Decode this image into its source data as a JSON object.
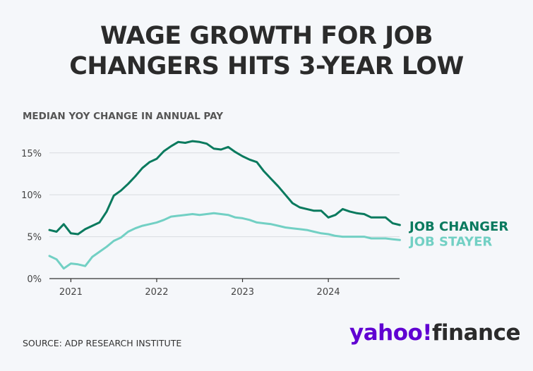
{
  "title_line1": "WAGE GROWTH FOR JOB",
  "title_line2": "CHANGERS HITS 3-YEAR LOW",
  "subtitle": "MEDIAN YOY CHANGE IN ANNUAL PAY",
  "source": "SOURCE: ADP RESEARCH INSTITUTE",
  "logo": {
    "brand": "yahoo!",
    "product": "finance"
  },
  "colors": {
    "job_changer": "#0a7a5e",
    "job_stayer": "#72d0c4",
    "grid": "#d8dce0",
    "axis": "#333333"
  },
  "chart_data": {
    "type": "line",
    "title": "WAGE GROWTH FOR JOB CHANGERS HITS 3-YEAR LOW",
    "ylabel": "MEDIAN YOY CHANGE IN ANNUAL PAY",
    "xlim": [
      2020.75,
      2024.83
    ],
    "ylim": [
      0,
      17
    ],
    "y_ticks": [
      0,
      5,
      10,
      15
    ],
    "y_tick_labels": [
      "0%",
      "5%",
      "10%",
      "15%"
    ],
    "x_ticks": [
      2021,
      2022,
      2023,
      2024
    ],
    "x_tick_labels": [
      "2021",
      "2022",
      "2023",
      "2024"
    ],
    "grid": true,
    "series": [
      {
        "name": "JOB CHANGER",
        "x": [
          2020.75,
          2020.833,
          2020.917,
          2021.0,
          2021.083,
          2021.167,
          2021.25,
          2021.333,
          2021.417,
          2021.5,
          2021.583,
          2021.667,
          2021.75,
          2021.833,
          2021.917,
          2022.0,
          2022.083,
          2022.167,
          2022.25,
          2022.333,
          2022.417,
          2022.5,
          2022.583,
          2022.667,
          2022.75,
          2022.833,
          2022.917,
          2023.0,
          2023.083,
          2023.167,
          2023.25,
          2023.333,
          2023.417,
          2023.5,
          2023.583,
          2023.667,
          2023.75,
          2023.833,
          2023.917,
          2024.0,
          2024.083,
          2024.167,
          2024.25,
          2024.333,
          2024.417,
          2024.5,
          2024.583,
          2024.667,
          2024.75,
          2024.833
        ],
        "values": [
          5.8,
          5.6,
          6.5,
          5.4,
          5.3,
          5.9,
          6.3,
          6.7,
          8.0,
          9.9,
          10.5,
          11.3,
          12.2,
          13.2,
          13.9,
          14.3,
          15.2,
          15.8,
          16.3,
          16.2,
          16.4,
          16.3,
          16.1,
          15.5,
          15.4,
          15.7,
          15.1,
          14.6,
          14.2,
          13.9,
          12.8,
          11.9,
          11.0,
          10.0,
          9.0,
          8.5,
          8.3,
          8.1,
          8.1,
          7.3,
          7.6,
          8.3,
          8.0,
          7.8,
          7.7,
          7.3,
          7.3,
          7.3,
          6.6,
          6.4
        ]
      },
      {
        "name": "JOB STAYER",
        "x": [
          2020.75,
          2020.833,
          2020.917,
          2021.0,
          2021.083,
          2021.167,
          2021.25,
          2021.333,
          2021.417,
          2021.5,
          2021.583,
          2021.667,
          2021.75,
          2021.833,
          2021.917,
          2022.0,
          2022.083,
          2022.167,
          2022.25,
          2022.333,
          2022.417,
          2022.5,
          2022.583,
          2022.667,
          2022.75,
          2022.833,
          2022.917,
          2023.0,
          2023.083,
          2023.167,
          2023.25,
          2023.333,
          2023.417,
          2023.5,
          2023.583,
          2023.667,
          2023.75,
          2023.833,
          2023.917,
          2024.0,
          2024.083,
          2024.167,
          2024.25,
          2024.333,
          2024.417,
          2024.5,
          2024.583,
          2024.667,
          2024.75,
          2024.833
        ],
        "values": [
          2.7,
          2.3,
          1.2,
          1.8,
          1.7,
          1.5,
          2.6,
          3.2,
          3.8,
          4.5,
          4.9,
          5.6,
          6.0,
          6.3,
          6.5,
          6.7,
          7.0,
          7.4,
          7.5,
          7.6,
          7.7,
          7.6,
          7.7,
          7.8,
          7.7,
          7.6,
          7.3,
          7.2,
          7.0,
          6.7,
          6.6,
          6.5,
          6.3,
          6.1,
          6.0,
          5.9,
          5.8,
          5.6,
          5.4,
          5.3,
          5.1,
          5.0,
          5.0,
          5.0,
          5.0,
          4.8,
          4.8,
          4.8,
          4.7,
          4.6
        ]
      }
    ]
  }
}
